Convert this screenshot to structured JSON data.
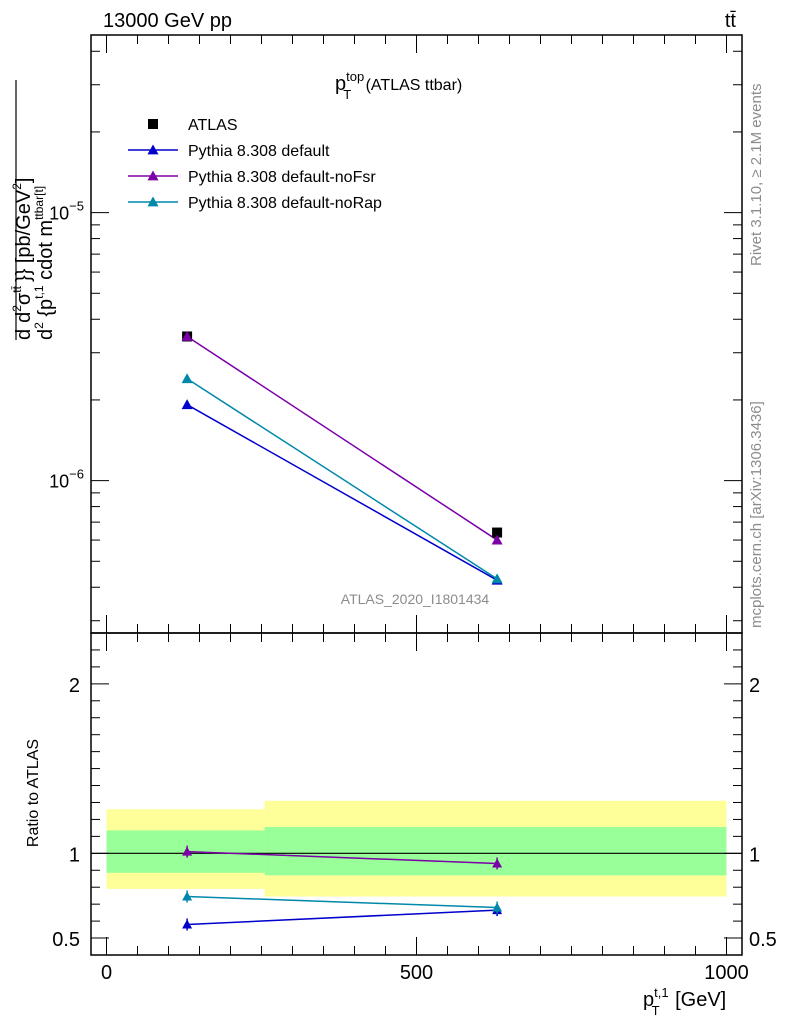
{
  "header": {
    "left": "13000 GeV pp",
    "right": "tt̄"
  },
  "side_labels": {
    "rivet": "Rivet 3.1.10, ≥ 2.1M events",
    "mcplots": "mcplots.cern.ch [arXiv:1306.3436]"
  },
  "analysis_id": "ATLAS_2020_I1801434",
  "chart_data": [
    {
      "type": "line",
      "panel": "main",
      "title": {
        "base": "p",
        "sup": "top",
        "sub": "T",
        "rest": " (ATLAS ttbar)"
      },
      "ylabel": {
        "p1": "d",
        "p2": "d",
        "p2sup": "2",
        "p3": "σ",
        "p3sup": "tt̄",
        "p4": "}} [pb/GeV",
        "p4sup": "2",
        "p5": "]",
        "den1": "d",
        "den1sup": "2",
        "den2": " {p",
        "den2sup": "t,1",
        "den2sub": "T",
        "den3": " cdot m",
        "den3sup": "ttbar[t]",
        "den3sub": ""
      },
      "yscale": "log",
      "ylim": [
        2.7e-07,
        4.6e-05
      ],
      "yticks": [
        {
          "value": 1e-06,
          "base": "10",
          "exp": "−6"
        },
        {
          "value": 1e-05,
          "base": "10",
          "exp": "−5"
        }
      ],
      "legend_position": "top-left",
      "x": [
        130,
        630
      ],
      "series": [
        {
          "name": "ATLAS",
          "color": "#000000",
          "marker": "square",
          "values": [
            3.45e-06,
            6.4e-07
          ],
          "line": false
        },
        {
          "name": "Pythia 8.308 default",
          "color": "#0000cc",
          "marker": "triangle",
          "values": [
            1.92e-06,
            4.25e-07
          ],
          "line": true
        },
        {
          "name": "Pythia 8.308 default-noFsr",
          "color": "#7b00a8",
          "marker": "triangle",
          "values": [
            3.45e-06,
            6e-07
          ],
          "line": true
        },
        {
          "name": "Pythia 8.308 default-noRap",
          "color": "#0088aa",
          "marker": "triangle",
          "values": [
            2.4e-06,
            4.3e-07
          ],
          "line": true
        }
      ]
    },
    {
      "type": "line",
      "panel": "ratio",
      "ylabel": "Ratio to ATLAS",
      "xlabel": {
        "base": "p",
        "sup": "t,1",
        "sub": "T",
        "rest": " [GeV]"
      },
      "xlim": [
        -25,
        1025
      ],
      "ylim": [
        0.4,
        2.3
      ],
      "xticks": [
        0,
        500,
        1000
      ],
      "xtick_labels": [
        "0",
        "500",
        "1000"
      ],
      "yticks": [
        0.5,
        1,
        2
      ],
      "ytick_labels": [
        "0.5",
        "1",
        "2"
      ],
      "bands": [
        {
          "x0": 0,
          "x1": 255,
          "yellow": [
            0.79,
            1.26
          ],
          "green": [
            0.885,
            1.135
          ]
        },
        {
          "x0": 255,
          "x1": 1000,
          "yellow": [
            0.745,
            1.31
          ],
          "green": [
            0.87,
            1.155
          ]
        }
      ],
      "x": [
        130,
        630
      ],
      "series": [
        {
          "name": "Pythia 8.308 default",
          "color": "#0000cc",
          "values": [
            0.58,
            0.665
          ]
        },
        {
          "name": "Pythia 8.308 default-noFsr",
          "color": "#7b00a8",
          "values": [
            1.01,
            0.94
          ]
        },
        {
          "name": "Pythia 8.308 default-noRap",
          "color": "#0088aa",
          "values": [
            0.745,
            0.68
          ]
        }
      ]
    }
  ]
}
